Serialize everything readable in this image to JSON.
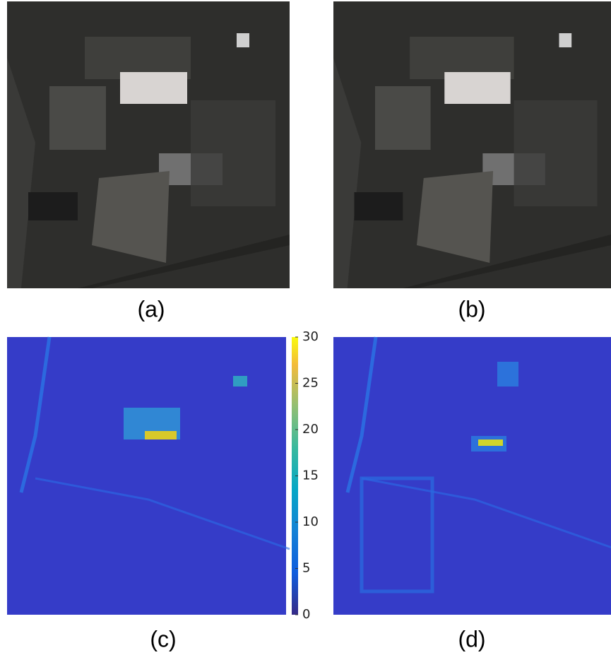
{
  "panels": [
    {
      "label": "(a)"
    },
    {
      "label": "(b)"
    },
    {
      "label": "(c)"
    },
    {
      "label": "(d)"
    }
  ],
  "colorbar": {
    "lim": [
      0,
      30
    ],
    "ticks": [
      0,
      5,
      10,
      15,
      20,
      25,
      30
    ]
  }
}
